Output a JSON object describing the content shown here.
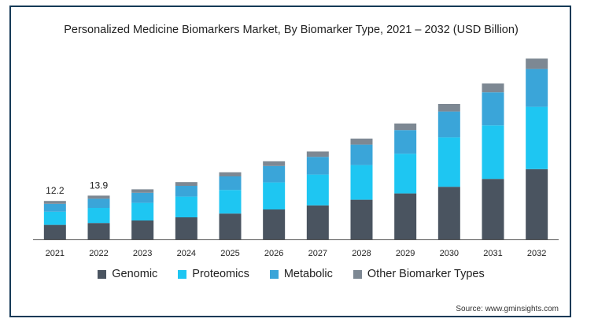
{
  "chart_data": {
    "type": "bar",
    "stacked": true,
    "title": "Personalized Medicine Biomarkers Market, By Biomarker Type, 2021 – 2032 (USD Billion)",
    "xlabel": "",
    "ylabel": "",
    "categories": [
      "2021",
      "2022",
      "2023",
      "2024",
      "2025",
      "2026",
      "2027",
      "2028",
      "2029",
      "2030",
      "2031",
      "2032"
    ],
    "ylim": [
      0,
      60
    ],
    "grid": false,
    "legend_position": "bottom",
    "series": [
      {
        "name": "Genomic",
        "color": "#4a5460",
        "values": [
          4.6,
          5.2,
          6.0,
          7.0,
          8.2,
          9.5,
          10.8,
          12.6,
          14.6,
          16.7,
          19.2,
          22.3
        ]
      },
      {
        "name": "Proteomics",
        "color": "#1ec6f2",
        "values": [
          4.2,
          4.8,
          5.6,
          6.6,
          7.5,
          8.6,
          9.8,
          11.0,
          12.6,
          15.7,
          17.0,
          19.8
        ]
      },
      {
        "name": "Metabolic",
        "color": "#3aa5d9",
        "values": [
          2.5,
          2.9,
          3.2,
          3.4,
          4.3,
          5.2,
          5.6,
          6.5,
          7.5,
          8.2,
          10.5,
          12.0
        ]
      },
      {
        "name": "Other Biomarker Types",
        "color": "#7d8893",
        "values": [
          0.9,
          1.0,
          1.1,
          1.2,
          1.3,
          1.5,
          1.7,
          1.9,
          2.1,
          2.4,
          2.8,
          3.3
        ]
      }
    ],
    "data_labels": [
      {
        "category": "2021",
        "text": "12.2"
      },
      {
        "category": "2022",
        "text": "13.9"
      }
    ]
  },
  "title_text": "Personalized Medicine Biomarkers Market, By Biomarker Type, 2021 – 2032 (USD Billion)",
  "legend": [
    {
      "label": "Genomic",
      "color": "#4a5460"
    },
    {
      "label": "Proteomics",
      "color": "#1ec6f2"
    },
    {
      "label": "Metabolic",
      "color": "#3aa5d9"
    },
    {
      "label": "Other Biomarker Types",
      "color": "#7d8893"
    }
  ],
  "source": "Source: www.gminsights.com",
  "colors": {
    "frame": "#153a57",
    "axis": "#555555"
  }
}
